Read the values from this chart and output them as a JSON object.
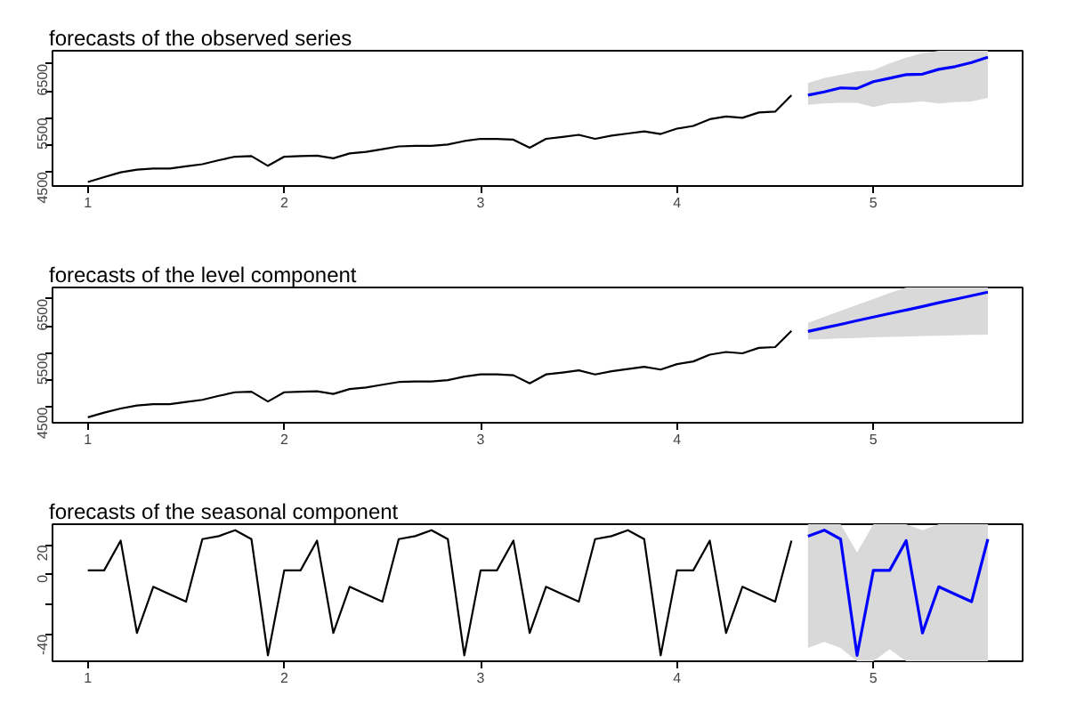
{
  "chart_data": [
    {
      "type": "line",
      "title": "forecasts of the observed series",
      "xlim": [
        0.82,
        5.76
      ],
      "ylim": [
        4236,
        6744
      ],
      "xticks": [
        1,
        2,
        3,
        4,
        5
      ],
      "yticks": [
        4500,
        {
          "value": 5000,
          "label": null
        },
        5500,
        {
          "value": 6000,
          "label": null
        },
        6500
      ],
      "grid": false,
      "marker": "none",
      "line_style": "solid",
      "series": [
        {
          "color": "#000000",
          "x": [
            1,
            1.083,
            1.167,
            1.25,
            1.333,
            1.417,
            1.5,
            1.583,
            1.667,
            1.75,
            1.833,
            1.917,
            2,
            2.083,
            2.167,
            2.25,
            2.333,
            2.417,
            2.5,
            2.583,
            2.667,
            2.75,
            2.833,
            2.917,
            3,
            3.083,
            3.167,
            3.25,
            3.333,
            3.417,
            3.5,
            3.583,
            3.667,
            3.75,
            3.833,
            3.917,
            4,
            4.083,
            4.167,
            4.25,
            4.333,
            4.417,
            4.5,
            4.583
          ],
          "values": [
            4310,
            4400,
            4490,
            4540,
            4560,
            4560,
            4600,
            4640,
            4715,
            4780,
            4790,
            4610,
            4780,
            4790,
            4800,
            4750,
            4840,
            4870,
            4920,
            4970,
            4980,
            4980,
            5005,
            5070,
            5110,
            5110,
            5095,
            4945,
            5110,
            5145,
            5185,
            5110,
            5170,
            5210,
            5250,
            5200,
            5300,
            5350,
            5475,
            5525,
            5500,
            5600,
            5615,
            5920
          ]
        },
        {
          "color": "#0000ff",
          "x": [
            4.667,
            4.75,
            4.833,
            4.917,
            5,
            5.083,
            5.167,
            5.25,
            5.333,
            5.417,
            5.5,
            5.583
          ],
          "values": [
            5920,
            5980,
            6055,
            6045,
            6170,
            6235,
            6300,
            6310,
            6400,
            6450,
            6525,
            6625
          ],
          "lower": [
            5740,
            5765,
            5780,
            5780,
            5700,
            5765,
            5780,
            5805,
            5765,
            5790,
            5805,
            5870
          ],
          "upper": [
            6145,
            6235,
            6300,
            6360,
            6385,
            6510,
            6615,
            6700,
            6744,
            6744,
            6744,
            6744
          ]
        }
      ]
    },
    {
      "type": "line",
      "title": "forecasts of the level component",
      "xlim": [
        0.82,
        5.76
      ],
      "ylim": [
        4212,
        6712
      ],
      "xticks": [
        1,
        2,
        3,
        4,
        5
      ],
      "yticks": [
        4500,
        {
          "value": 5000,
          "label": null
        },
        5500,
        {
          "value": 6000,
          "label": null
        },
        6500
      ],
      "grid": false,
      "marker": "none",
      "line_style": "solid",
      "series": [
        {
          "color": "#000000",
          "x": [
            1,
            1.083,
            1.167,
            1.25,
            1.333,
            1.417,
            1.5,
            1.583,
            1.667,
            1.75,
            1.833,
            1.917,
            2,
            2.083,
            2.167,
            2.25,
            2.333,
            2.417,
            2.5,
            2.583,
            2.667,
            2.75,
            2.833,
            2.917,
            3,
            3.083,
            3.167,
            3.25,
            3.333,
            3.417,
            3.5,
            3.583,
            3.667,
            3.75,
            3.833,
            3.917,
            4,
            4.083,
            4.167,
            4.25,
            4.333,
            4.417,
            4.5,
            4.583
          ],
          "values": [
            4312,
            4400,
            4475,
            4530,
            4555,
            4555,
            4595,
            4635,
            4710,
            4775,
            4785,
            4605,
            4775,
            4785,
            4795,
            4745,
            4835,
            4865,
            4915,
            4965,
            4975,
            4975,
            5000,
            5065,
            5105,
            5105,
            5090,
            4940,
            5105,
            5140,
            5180,
            5105,
            5165,
            5205,
            5245,
            5195,
            5295,
            5345,
            5470,
            5520,
            5495,
            5595,
            5610,
            5910
          ]
        },
        {
          "color": "#0000ff",
          "x": [
            4.667,
            4.75,
            4.833,
            4.917,
            5,
            5.083,
            5.167,
            5.25,
            5.333,
            5.417,
            5.5,
            5.583
          ],
          "values": [
            5900,
            5965,
            6030,
            6100,
            6165,
            6230,
            6295,
            6360,
            6430,
            6495,
            6560,
            6625
          ],
          "lower": [
            5750,
            5760,
            5770,
            5780,
            5790,
            5800,
            5805,
            5815,
            5820,
            5830,
            5835,
            5840
          ],
          "upper": [
            6060,
            6170,
            6280,
            6390,
            6500,
            6610,
            6712,
            6712,
            6712,
            6712,
            6712,
            6712
          ]
        }
      ]
    },
    {
      "type": "line",
      "title": "forecasts of the seasonal component",
      "xlim": [
        0.82,
        5.76
      ],
      "ylim": [
        -58,
        34
      ],
      "xticks": [
        1,
        2,
        3,
        4,
        5
      ],
      "yticks": [
        -40,
        {
          "value": -20,
          "label": null
        },
        0,
        20
      ],
      "grid": false,
      "marker": "none",
      "line_style": "solid",
      "series": [
        {
          "color": "#000000",
          "x": [
            1,
            1.083,
            1.167,
            1.25,
            1.333,
            1.417,
            1.5,
            1.583,
            1.667,
            1.75,
            1.833,
            1.917,
            2,
            2.083,
            2.167,
            2.25,
            2.333,
            2.417,
            2.5,
            2.583,
            2.667,
            2.75,
            2.833,
            2.917,
            3,
            3.083,
            3.167,
            3.25,
            3.333,
            3.417,
            3.5,
            3.583,
            3.667,
            3.75,
            3.833,
            3.917,
            4,
            4.083,
            4.167,
            4.25,
            4.333,
            4.417,
            4.5,
            4.583
          ],
          "values": [
            3,
            3,
            23,
            -39,
            -8,
            -13,
            -18,
            24,
            26,
            30,
            24,
            -54,
            3,
            3,
            23,
            -39,
            -8,
            -13,
            -18,
            24,
            26,
            30,
            24,
            -54,
            3,
            3,
            23,
            -39,
            -8,
            -13,
            -18,
            24,
            26,
            30,
            24,
            -54,
            3,
            3,
            23,
            -39,
            -8,
            -13,
            -18,
            23
          ]
        },
        {
          "color": "#0000ff",
          "x": [
            4.667,
            4.75,
            4.833,
            4.917,
            5,
            5.083,
            5.167,
            5.25,
            5.333,
            5.417,
            5.5,
            5.583
          ],
          "values": [
            26,
            30,
            24,
            -54,
            3,
            3,
            23,
            -39,
            -8,
            -13,
            -18,
            24
          ],
          "lower": [
            -49,
            -45,
            -49,
            -58,
            -58,
            -50,
            -58,
            -58,
            -58,
            -58,
            -58,
            -58
          ],
          "upper": [
            34,
            34,
            34,
            15,
            34,
            34,
            34,
            30,
            34,
            34,
            34,
            34
          ]
        }
      ]
    }
  ]
}
